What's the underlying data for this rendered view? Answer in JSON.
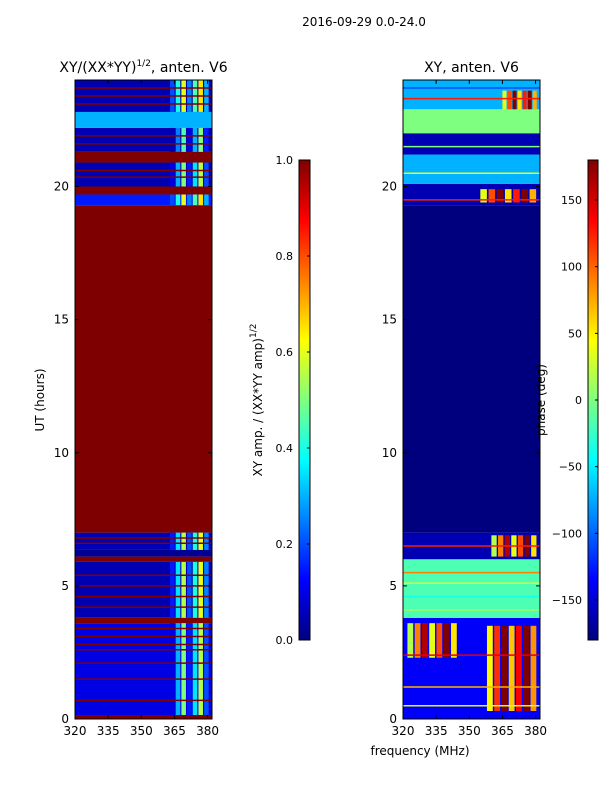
{
  "figure": {
    "suptitle": "2016-09-29 0.0-24.0",
    "xlabel": "frequency (MHz)"
  },
  "colors": {
    "jet": [
      "#00007f",
      "#0000ff",
      "#007fff",
      "#00ffff",
      "#7fff7f",
      "#ffff00",
      "#ff7f00",
      "#ff0000",
      "#7f0000"
    ],
    "frame": "#000000",
    "background": "#ffffff"
  },
  "chart_data": [
    {
      "type": "heatmap",
      "title": "XY/(XX*YY)",
      "title_superscript": "1/2",
      "title_suffix": ", anten. V6",
      "ylabel": "UT (hours)",
      "xlim": [
        320,
        382
      ],
      "ylim": [
        0,
        24
      ],
      "xticks": [
        320,
        335,
        350,
        365,
        380
      ],
      "yticks": [
        0,
        5,
        10,
        15,
        20
      ],
      "colorbar": {
        "label": "XY amp. / (XX*YY amp)",
        "label_superscript": "1/2",
        "range": [
          0.0,
          1.0
        ],
        "ticks": [
          "0.0",
          "0.2",
          "0.4",
          "0.6",
          "0.8",
          "1.0"
        ]
      },
      "bands": [
        {
          "t0": 0.0,
          "t1": 0.15,
          "value": 1.0
        },
        {
          "t0": 0.15,
          "t1": 3.6,
          "value": 0.1
        },
        {
          "t0": 3.6,
          "t1": 3.8,
          "value": 1.0
        },
        {
          "t0": 3.8,
          "t1": 5.9,
          "value": 0.05
        },
        {
          "t0": 5.9,
          "t1": 6.1,
          "value": 1.0
        },
        {
          "t0": 6.1,
          "t1": 6.35,
          "value": 0.02
        },
        {
          "t0": 6.35,
          "t1": 7.0,
          "value": 0.05
        },
        {
          "t0": 7.0,
          "t1": 19.3,
          "value": 1.0
        },
        {
          "t0": 19.3,
          "t1": 19.7,
          "value": 0.15
        },
        {
          "t0": 19.7,
          "t1": 20.0,
          "value": 1.0
        },
        {
          "t0": 20.0,
          "t1": 20.9,
          "value": 0.05
        },
        {
          "t0": 20.9,
          "t1": 21.3,
          "value": 1.0
        },
        {
          "t0": 21.3,
          "t1": 22.2,
          "value": 0.05
        },
        {
          "t0": 22.2,
          "t1": 22.8,
          "value": 0.3
        },
        {
          "t0": 22.8,
          "t1": 24.0,
          "value": 0.05
        }
      ],
      "lines": [
        {
          "t": 0.7,
          "value": 1.0
        },
        {
          "t": 1.5,
          "value": 1.0
        },
        {
          "t": 2.1,
          "value": 1.0
        },
        {
          "t": 2.6,
          "value": 1.0
        },
        {
          "t": 2.8,
          "value": 1.0
        },
        {
          "t": 3.1,
          "value": 1.0
        },
        {
          "t": 3.4,
          "value": 1.0
        },
        {
          "t": 4.2,
          "value": 1.0
        },
        {
          "t": 4.6,
          "value": 1.0
        },
        {
          "t": 5.0,
          "value": 1.0
        },
        {
          "t": 5.4,
          "value": 1.0
        },
        {
          "t": 6.6,
          "value": 1.0
        },
        {
          "t": 6.8,
          "value": 1.0
        },
        {
          "t": 20.35,
          "value": 1.0
        },
        {
          "t": 20.6,
          "value": 1.0
        },
        {
          "t": 21.6,
          "value": 1.0
        },
        {
          "t": 21.9,
          "value": 1.0
        },
        {
          "t": 23.1,
          "value": 1.0
        },
        {
          "t": 23.4,
          "value": 1.0
        },
        {
          "t": 23.7,
          "value": 1.0
        }
      ],
      "patches": [
        {
          "f0": 363,
          "f1": 381,
          "t0": 0.15,
          "t1": 3.6,
          "value": 0.35
        },
        {
          "f0": 363,
          "f1": 381,
          "t0": 3.8,
          "t1": 5.9,
          "value": 0.4
        },
        {
          "f0": 363,
          "f1": 381,
          "t0": 6.35,
          "t1": 7.0,
          "value": 0.4
        },
        {
          "f0": 363,
          "f1": 381,
          "t0": 19.3,
          "t1": 19.7,
          "value": 0.45
        },
        {
          "f0": 363,
          "f1": 381,
          "t0": 20.0,
          "t1": 20.9,
          "value": 0.35
        },
        {
          "f0": 363,
          "f1": 381,
          "t0": 21.3,
          "t1": 22.2,
          "value": 0.3
        },
        {
          "f0": 363,
          "f1": 381,
          "t0": 22.8,
          "t1": 24.0,
          "value": 0.45
        }
      ]
    },
    {
      "type": "heatmap",
      "title": "XY, anten. V6",
      "ylabel": "",
      "xlim": [
        320,
        382
      ],
      "ylim": [
        0,
        24
      ],
      "xticks": [
        320,
        335,
        350,
        365,
        380
      ],
      "yticks": [
        0,
        5,
        10,
        15,
        20
      ],
      "colorbar": {
        "label": "phase (deg)",
        "range": [
          -180,
          180
        ],
        "ticks": [
          "−150",
          "−100",
          "−50",
          "0",
          "50",
          "100",
          "150"
        ]
      },
      "bands": [
        {
          "t0": 0.0,
          "t1": 3.8,
          "value": 0.12
        },
        {
          "t0": 3.8,
          "t1": 6.0,
          "value": 0.45
        },
        {
          "t0": 6.0,
          "t1": 7.0,
          "value": 0.05
        },
        {
          "t0": 7.0,
          "t1": 19.3,
          "value": 0.0
        },
        {
          "t0": 19.3,
          "t1": 20.1,
          "value": 0.05
        },
        {
          "t0": 20.1,
          "t1": 21.2,
          "value": 0.3
        },
        {
          "t0": 21.2,
          "t1": 22.0,
          "value": 0.05
        },
        {
          "t0": 22.0,
          "t1": 22.9,
          "value": 0.5
        },
        {
          "t0": 22.9,
          "t1": 24.0,
          "value": 0.3
        }
      ],
      "lines": [
        {
          "t": 0.5,
          "value": 0.6
        },
        {
          "t": 1.2,
          "value": 0.7
        },
        {
          "t": 2.4,
          "value": 0.9
        },
        {
          "t": 4.1,
          "value": 0.55
        },
        {
          "t": 4.6,
          "value": 0.4
        },
        {
          "t": 5.1,
          "value": 0.6
        },
        {
          "t": 5.5,
          "value": 0.75
        },
        {
          "t": 6.5,
          "value": 0.85
        },
        {
          "t": 19.5,
          "value": 0.85
        },
        {
          "t": 20.5,
          "value": 0.6
        },
        {
          "t": 21.5,
          "value": 0.5
        },
        {
          "t": 23.3,
          "value": 0.85
        },
        {
          "t": 23.7,
          "value": 0.2
        }
      ],
      "patches": [
        {
          "f0": 358,
          "f1": 381,
          "t0": 0.3,
          "t1": 3.5,
          "value": 0.88
        },
        {
          "f0": 322,
          "f1": 345,
          "t0": 2.3,
          "t1": 3.6,
          "value": 0.8
        },
        {
          "f0": 360,
          "f1": 381,
          "t0": 6.1,
          "t1": 6.9,
          "value": 0.8
        },
        {
          "f0": 355,
          "f1": 381,
          "t0": 19.4,
          "t1": 19.9,
          "value": 0.85
        },
        {
          "f0": 365,
          "f1": 381,
          "t0": 22.9,
          "t1": 23.6,
          "value": 0.85
        }
      ]
    }
  ]
}
